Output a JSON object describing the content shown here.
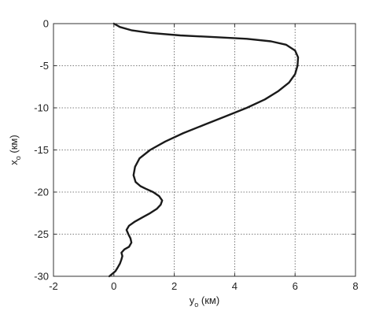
{
  "chart_data": {
    "type": "line",
    "title": "",
    "xlabel": {
      "main": "y",
      "sub": "o",
      "unit": " (км)"
    },
    "ylabel": {
      "main": "x",
      "sub": "o",
      "unit": " (км)"
    },
    "xlim": [
      -2,
      8
    ],
    "ylim": [
      -30,
      0
    ],
    "xticks": [
      -2,
      0,
      2,
      4,
      6,
      8
    ],
    "yticks": [
      0,
      -5,
      -10,
      -15,
      -20,
      -25,
      -30
    ],
    "xtick_labels": [
      "-2",
      "0",
      "2",
      "4",
      "6",
      "8"
    ],
    "ytick_labels": [
      "0",
      "-5",
      "-10",
      "-15",
      "-20",
      "-25",
      "-30"
    ],
    "grid": true,
    "grid_style": "dotted",
    "line_color": "#1a1a1a",
    "series": [
      {
        "x": [
          0.0,
          0.2,
          0.6,
          1.2,
          2.2,
          3.3,
          4.4,
          5.2,
          5.7,
          6.0,
          6.1,
          6.08,
          6.0,
          5.8,
          5.45,
          5.0,
          4.4,
          3.7,
          3.0,
          2.3,
          1.7,
          1.2,
          0.85,
          0.7,
          0.65,
          0.72,
          0.88,
          1.05,
          1.3,
          1.5,
          1.6,
          1.55,
          1.42,
          1.2,
          0.95,
          0.7,
          0.5,
          0.42,
          0.48,
          0.55,
          0.58,
          0.5,
          0.35,
          0.25,
          0.28,
          0.25,
          0.2,
          0.12,
          0.05,
          -0.05,
          -0.15
        ],
        "y": [
          0.0,
          -0.4,
          -0.8,
          -1.1,
          -1.4,
          -1.6,
          -1.8,
          -2.1,
          -2.5,
          -3.2,
          -4.0,
          -5.0,
          -6.0,
          -7.0,
          -8.0,
          -9.0,
          -10.0,
          -11.0,
          -12.0,
          -13.0,
          -14.0,
          -15.0,
          -16.0,
          -17.0,
          -18.0,
          -18.8,
          -19.3,
          -19.6,
          -20.0,
          -20.5,
          -21.0,
          -21.5,
          -22.0,
          -22.5,
          -23.0,
          -23.5,
          -24.0,
          -24.5,
          -25.0,
          -25.5,
          -26.0,
          -26.5,
          -26.8,
          -27.2,
          -27.6,
          -28.0,
          -28.5,
          -29.0,
          -29.4,
          -29.7,
          -30.0
        ]
      }
    ]
  }
}
